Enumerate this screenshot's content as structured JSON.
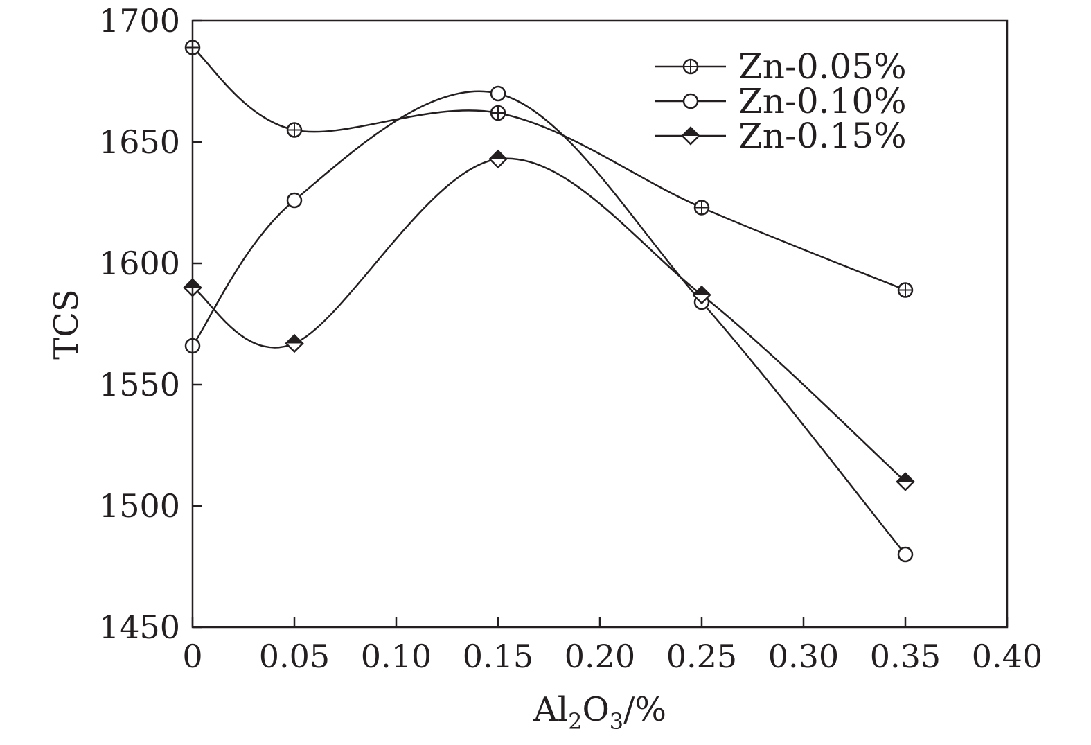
{
  "chart_data": {
    "type": "line",
    "xlabel": {
      "main": "Al",
      "sub1": "2",
      "mid": "O",
      "sub2": "3",
      "tail": "/%"
    },
    "ylabel": "TCS",
    "xlim": [
      0,
      0.4
    ],
    "ylim": [
      1450,
      1700
    ],
    "x_ticks": [
      0,
      0.05,
      0.1,
      0.15,
      0.2,
      0.25,
      0.3,
      0.35,
      0.4
    ],
    "x_tick_labels": [
      "0",
      "0.05",
      "0.10",
      "0.15",
      "0.20",
      "0.25",
      "0.30",
      "0.35",
      "0.40"
    ],
    "y_ticks": [
      1450,
      1500,
      1550,
      1600,
      1650,
      1700
    ],
    "y_tick_labels": [
      "1450",
      "1500",
      "1550",
      "1600",
      "1650",
      "1700"
    ],
    "grid": false,
    "legend_position": "top-right",
    "series": [
      {
        "name": "Zn-0.05%",
        "marker": "circle-cross",
        "x": [
          0,
          0.05,
          0.15,
          0.25,
          0.35
        ],
        "y": [
          1689,
          1655,
          1662,
          1623,
          1589
        ]
      },
      {
        "name": "Zn-0.10%",
        "marker": "open-circle",
        "x": [
          0,
          0.05,
          0.15,
          0.25,
          0.35
        ],
        "y": [
          1566,
          1626,
          1670,
          1584,
          1480
        ]
      },
      {
        "name": "Zn-0.15%",
        "marker": "half-filled-diamond",
        "x": [
          0,
          0.05,
          0.15,
          0.25,
          0.35
        ],
        "y": [
          1590,
          1567,
          1643,
          1587,
          1510
        ]
      }
    ]
  },
  "colors": {
    "ink": "#231f20",
    "background": "#ffffff"
  }
}
